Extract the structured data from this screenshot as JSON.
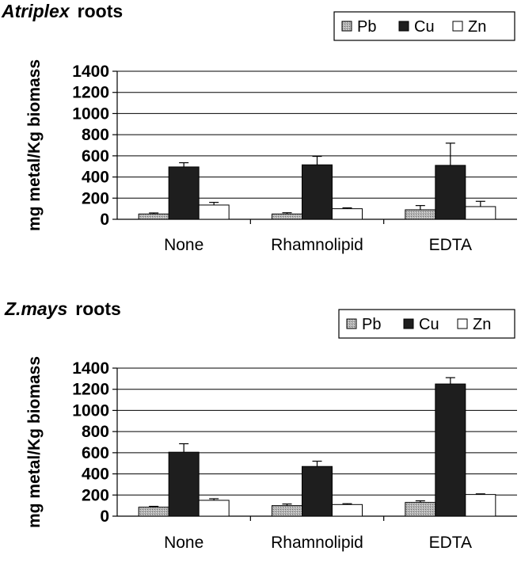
{
  "colors": {
    "Pb": "#b3b3b3",
    "Cu": "#1e1e1e",
    "Zn": "#ffffff",
    "gridline": "#000000"
  },
  "chart_data": [
    {
      "type": "bar",
      "title_italic": "Atriplex",
      "title_rest": "roots",
      "ylabel": "mg metal/Kg biomass",
      "xlabel": "",
      "ylim": [
        0,
        1400
      ],
      "yticks": [
        "0",
        "200",
        "400",
        "600",
        "800",
        "1000",
        "1200",
        "1400"
      ],
      "grid": true,
      "legend_position": "top-right",
      "categories": [
        "None",
        "Rhamnolipid",
        "EDTA"
      ],
      "series": [
        {
          "name": "Pb",
          "values": [
            50,
            50,
            90
          ],
          "errors": [
            10,
            12,
            40
          ]
        },
        {
          "name": "Cu",
          "values": [
            495,
            515,
            510
          ],
          "errors": [
            40,
            80,
            210
          ]
        },
        {
          "name": "Zn",
          "values": [
            135,
            100,
            120
          ],
          "errors": [
            25,
            8,
            50
          ]
        }
      ]
    },
    {
      "type": "bar",
      "title_italic": "Z.mays",
      "title_rest": "roots",
      "ylabel": "mg metal/Kg biomass",
      "xlabel": "",
      "ylim": [
        0,
        1400
      ],
      "yticks": [
        "0",
        "200",
        "400",
        "600",
        "800",
        "1000",
        "1200",
        "1400"
      ],
      "grid": true,
      "legend_position": "top-right",
      "categories": [
        "None",
        "Rhamnolipid",
        "EDTA"
      ],
      "series": [
        {
          "name": "Pb",
          "values": [
            85,
            100,
            130
          ],
          "errors": [
            8,
            15,
            15
          ]
        },
        {
          "name": "Cu",
          "values": [
            605,
            470,
            1250
          ],
          "errors": [
            80,
            50,
            60
          ]
        },
        {
          "name": "Zn",
          "values": [
            150,
            110,
            205
          ],
          "errors": [
            15,
            8,
            6
          ]
        }
      ]
    }
  ]
}
